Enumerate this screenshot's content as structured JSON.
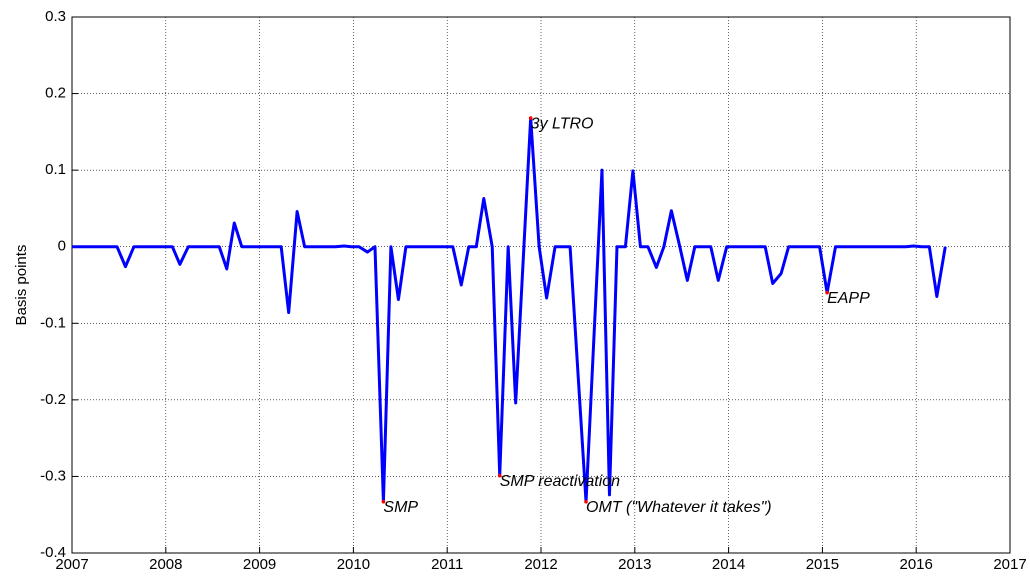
{
  "chart_data": {
    "type": "line",
    "y_label": "Basis points",
    "xlim": [
      2007,
      2017
    ],
    "ylim": [
      -0.4,
      0.3
    ],
    "xticks": [
      2007,
      2008,
      2009,
      2010,
      2011,
      2012,
      2013,
      2014,
      2015,
      2016,
      2017
    ],
    "yticks": [
      -0.4,
      -0.3,
      -0.2,
      -0.1,
      0,
      0.1,
      0.2,
      0.3
    ],
    "grid": true,
    "series": [
      {
        "color": "#0000ff",
        "x": [
          2007.0,
          2007.48,
          2007.57,
          2007.66,
          2008.07,
          2008.15,
          2008.24,
          2008.57,
          2008.65,
          2008.73,
          2008.81,
          2009.23,
          2009.31,
          2009.4,
          2009.48,
          2009.81,
          2009.9,
          2009.98,
          2010.06,
          2010.15,
          2010.23,
          2010.32,
          2010.4,
          2010.48,
          2010.56,
          2011.06,
          2011.15,
          2011.23,
          2011.31,
          2011.39,
          2011.48,
          2011.56,
          2011.65,
          2011.73,
          2011.89,
          2011.98,
          2012.06,
          2012.15,
          2012.31,
          2012.48,
          2012.65,
          2012.73,
          2012.81,
          2012.9,
          2012.98,
          2013.06,
          2013.14,
          2013.23,
          2013.31,
          2013.39,
          2013.48,
          2013.56,
          2013.64,
          2013.81,
          2013.89,
          2013.98,
          2014.39,
          2014.47,
          2014.56,
          2014.64,
          2014.97,
          2015.05,
          2015.14,
          2015.89,
          2015.97,
          2016.06,
          2016.14,
          2016.22,
          2016.31
        ],
        "values": [
          0,
          0,
          -0.026,
          0,
          0,
          -0.023,
          0,
          0,
          -0.029,
          0.031,
          0,
          0,
          -0.086,
          0.046,
          0,
          0,
          0.001,
          0,
          0,
          -0.007,
          0,
          -0.333,
          0,
          -0.069,
          0,
          0,
          -0.05,
          0,
          0,
          0.063,
          0,
          -0.299,
          0,
          -0.204,
          0.168,
          0,
          -0.067,
          0,
          0,
          -0.333,
          0.1,
          -0.324,
          0,
          0,
          0.099,
          0,
          0,
          -0.027,
          0,
          0.047,
          0,
          -0.044,
          0,
          0,
          -0.044,
          0,
          0,
          -0.048,
          -0.035,
          0,
          0,
          -0.06,
          0,
          0,
          0.001,
          0,
          0,
          -0.065,
          0
        ]
      }
    ],
    "annotations": [
      {
        "text": "SMP",
        "x": 2010.32,
        "y": -0.333,
        "color": "#ff0000"
      },
      {
        "text": "SMP reactivation",
        "x": 2011.56,
        "y": -0.299,
        "color": "#ff0000"
      },
      {
        "text": "3y LTRO",
        "x": 2011.89,
        "y": 0.168,
        "color": "#ff0000"
      },
      {
        "text": "OMT (\"Whatever it takes\")",
        "x": 2012.48,
        "y": -0.333,
        "color": "#ff0000"
      },
      {
        "text": "EAPP",
        "x": 2015.05,
        "y": -0.06,
        "color": "#ff0000"
      }
    ]
  }
}
